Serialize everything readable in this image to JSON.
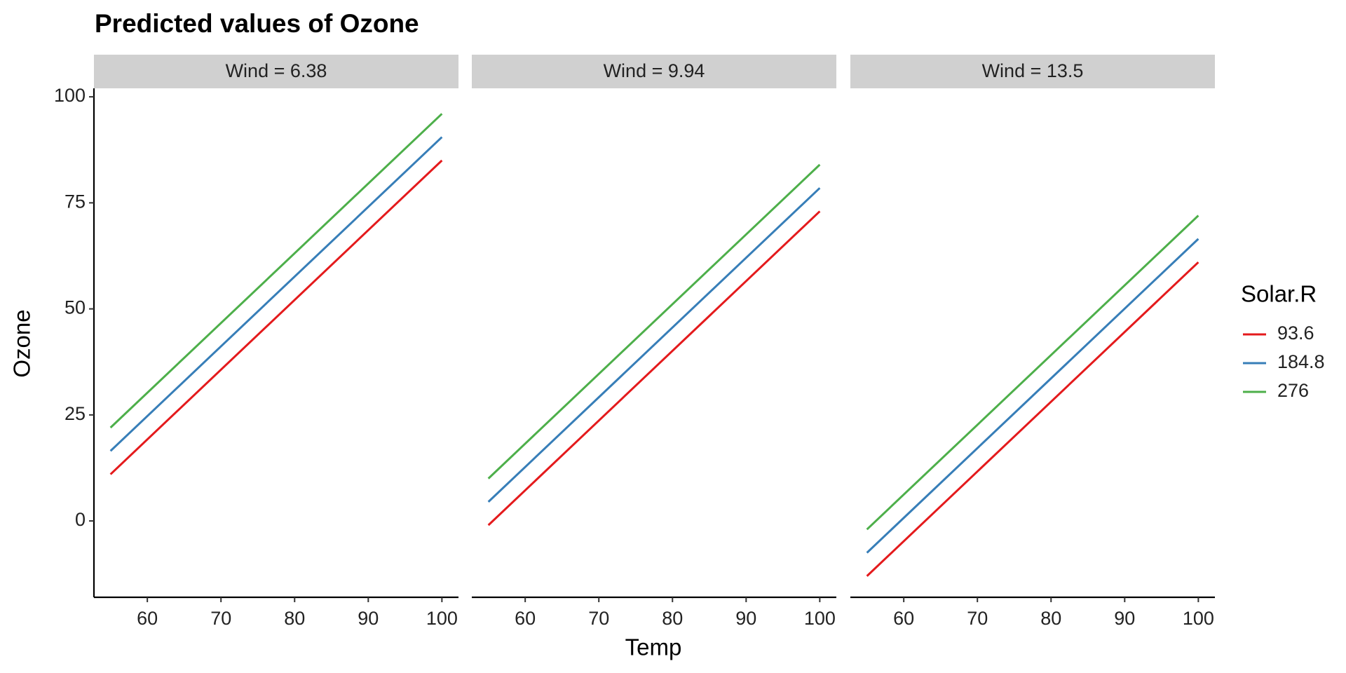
{
  "chart_data": {
    "type": "line",
    "title": "Predicted values of Ozone",
    "x_label": "Temp",
    "y_label": "Ozone",
    "legend_title": "Solar.R",
    "x": [
      55,
      100
    ],
    "xlim": [
      52.75,
      102.25
    ],
    "xticks": [
      60,
      70,
      80,
      90,
      100
    ],
    "ylim": [
      -18,
      102
    ],
    "yticks": [
      0,
      25,
      50,
      75,
      100
    ],
    "series": [
      {
        "name": "93.6",
        "color": "#e41a1c"
      },
      {
        "name": "184.8",
        "color": "#377eb8"
      },
      {
        "name": "276",
        "color": "#4daf4a"
      }
    ],
    "panels": [
      {
        "label": "Wind = 6.38",
        "values": [
          [
            11,
            85
          ],
          [
            16.5,
            90.5
          ],
          [
            22,
            96
          ]
        ]
      },
      {
        "label": "Wind = 9.94",
        "values": [
          [
            -1,
            73
          ],
          [
            4.5,
            78.5
          ],
          [
            10,
            84
          ]
        ]
      },
      {
        "label": "Wind = 13.5",
        "values": [
          [
            -13,
            61
          ],
          [
            -7.5,
            66.5
          ],
          [
            -2,
            72
          ]
        ]
      }
    ]
  }
}
